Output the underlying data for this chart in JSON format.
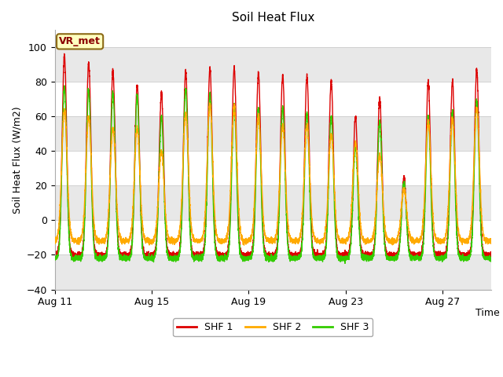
{
  "title": "Soil Heat Flux",
  "ylabel": "Soil Heat Flux (W/m2)",
  "xlabel": "Time",
  "ylim": [
    -40,
    110
  ],
  "yticks": [
    -40,
    -20,
    0,
    20,
    40,
    60,
    80,
    100
  ],
  "background_color": "#ffffff",
  "plot_bg_color": "#ffffff",
  "shf1_color": "#dd0000",
  "shf2_color": "#ffaa00",
  "shf3_color": "#33cc00",
  "legend_label1": "SHF 1",
  "legend_label2": "SHF 2",
  "legend_label3": "SHF 3",
  "vr_met_label": "VR_met",
  "xtick_labels": [
    "Aug 11",
    "Aug 15",
    "Aug 19",
    "Aug 23",
    "Aug 27"
  ],
  "xtick_positions": [
    0,
    4,
    8,
    12,
    16
  ],
  "linewidth": 1.0,
  "num_days": 18,
  "samples_per_day": 288,
  "peaks_shf1": [
    95,
    91,
    86,
    78,
    73,
    86,
    88,
    88,
    85,
    84,
    83,
    80,
    60,
    70,
    25,
    80,
    80,
    87
  ],
  "peaks_shf2": [
    64,
    60,
    53,
    53,
    40,
    62,
    67,
    66,
    60,
    55,
    55,
    50,
    45,
    38,
    18,
    57,
    58,
    65
  ],
  "peaks_shf3": [
    77,
    75,
    74,
    72,
    60,
    76,
    73,
    67,
    65,
    65,
    62,
    60,
    43,
    57,
    22,
    60,
    62,
    69
  ],
  "night_min_shf1": -20,
  "night_min_shf2": -12,
  "night_min_shf3": -22,
  "title_fontsize": 11,
  "axis_fontsize": 9,
  "tick_fontsize": 9
}
